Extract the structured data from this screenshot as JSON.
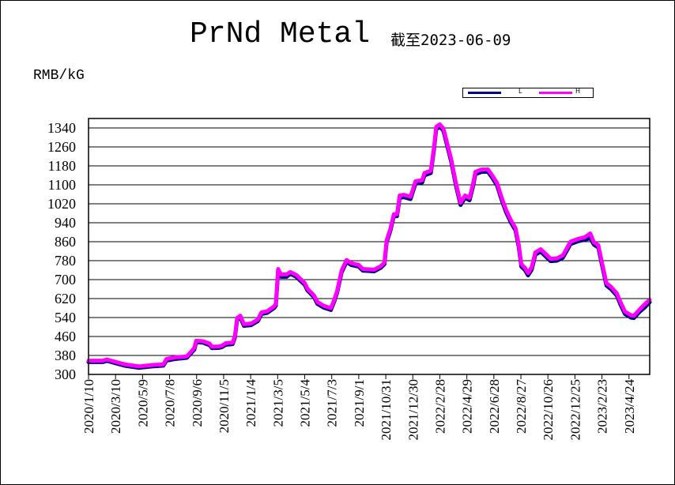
{
  "chart_data": {
    "type": "line",
    "title": "PrNd Metal",
    "subtitle": "截至2023-06-09",
    "ylabel": "RMB/kG",
    "xlabel": "",
    "ylim": [
      300,
      1380
    ],
    "yticks": [
      300,
      380,
      460,
      540,
      620,
      700,
      780,
      860,
      940,
      1020,
      1100,
      1180,
      1260,
      1340
    ],
    "xlim": [
      "2020-01-10",
      "2023-06-09"
    ],
    "xtick_labels": [
      "2020/1/10",
      "2020/3/10",
      "2020/5/9",
      "2020/7/8",
      "2020/9/6",
      "2020/11/5",
      "2021/1/4",
      "2021/3/5",
      "2021/5/4",
      "2021/7/3",
      "2021/9/1",
      "2021/10/31",
      "2021/12/30",
      "2022/2/28",
      "2022/4/29",
      "2022/6/28",
      "2022/8/27",
      "2022/10/26",
      "2022/12/25",
      "2023/2/23",
      "2023/4/24"
    ],
    "grid": "horizontal",
    "legend_position": "top-right",
    "series": [
      {
        "name": "L",
        "color": "#000080",
        "points": [
          [
            "2020-01-10",
            352
          ],
          [
            "2020-02-10",
            352
          ],
          [
            "2020-02-20",
            357
          ],
          [
            "2020-03-10",
            347
          ],
          [
            "2020-04-01",
            336
          ],
          [
            "2020-05-01",
            328
          ],
          [
            "2020-06-01",
            334
          ],
          [
            "2020-06-24",
            337
          ],
          [
            "2020-07-01",
            358
          ],
          [
            "2020-07-20",
            365
          ],
          [
            "2020-08-15",
            370
          ],
          [
            "2020-08-25",
            390
          ],
          [
            "2020-09-01",
            405
          ],
          [
            "2020-09-05",
            436
          ],
          [
            "2020-09-20",
            434
          ],
          [
            "2020-10-05",
            423
          ],
          [
            "2020-10-10",
            411
          ],
          [
            "2020-10-25",
            412
          ],
          [
            "2020-11-01",
            415
          ],
          [
            "2020-11-10",
            425
          ],
          [
            "2020-11-25",
            428
          ],
          [
            "2020-11-30",
            455
          ],
          [
            "2020-12-05",
            530
          ],
          [
            "2020-12-12",
            540
          ],
          [
            "2020-12-20",
            505
          ],
          [
            "2021-01-05",
            508
          ],
          [
            "2021-01-20",
            525
          ],
          [
            "2021-01-28",
            555
          ],
          [
            "2021-02-10",
            560
          ],
          [
            "2021-02-25",
            580
          ],
          [
            "2021-03-01",
            590
          ],
          [
            "2021-03-06",
            735
          ],
          [
            "2021-03-12",
            712
          ],
          [
            "2021-03-25",
            712
          ],
          [
            "2021-04-02",
            725
          ],
          [
            "2021-04-15",
            712
          ],
          [
            "2021-05-04",
            678
          ],
          [
            "2021-05-10",
            655
          ],
          [
            "2021-05-25",
            625
          ],
          [
            "2021-06-01",
            598
          ],
          [
            "2021-06-15",
            582
          ],
          [
            "2021-07-01",
            572
          ],
          [
            "2021-07-08",
            605
          ],
          [
            "2021-07-15",
            645
          ],
          [
            "2021-07-25",
            730
          ],
          [
            "2021-08-05",
            775
          ],
          [
            "2021-08-15",
            762
          ],
          [
            "2021-09-01",
            755
          ],
          [
            "2021-09-10",
            738
          ],
          [
            "2021-10-05",
            735
          ],
          [
            "2021-10-20",
            750
          ],
          [
            "2021-10-28",
            765
          ],
          [
            "2021-11-02",
            858
          ],
          [
            "2021-11-10",
            905
          ],
          [
            "2021-11-18",
            968
          ],
          [
            "2021-11-25",
            968
          ],
          [
            "2021-12-01",
            1045
          ],
          [
            "2021-12-10",
            1048
          ],
          [
            "2021-12-25",
            1040
          ],
          [
            "2022-01-05",
            1105
          ],
          [
            "2022-01-20",
            1110
          ],
          [
            "2022-01-25",
            1140
          ],
          [
            "2022-02-08",
            1150
          ],
          [
            "2022-02-15",
            1248
          ],
          [
            "2022-02-20",
            1335
          ],
          [
            "2022-02-28",
            1345
          ],
          [
            "2022-03-08",
            1328
          ],
          [
            "2022-03-15",
            1275
          ],
          [
            "2022-03-25",
            1200
          ],
          [
            "2022-04-05",
            1095
          ],
          [
            "2022-04-15",
            1015
          ],
          [
            "2022-04-25",
            1045
          ],
          [
            "2022-05-05",
            1035
          ],
          [
            "2022-05-12",
            1088
          ],
          [
            "2022-05-18",
            1145
          ],
          [
            "2022-06-01",
            1155
          ],
          [
            "2022-06-15",
            1155
          ],
          [
            "2022-06-25",
            1128
          ],
          [
            "2022-07-05",
            1098
          ],
          [
            "2022-07-15",
            1038
          ],
          [
            "2022-07-25",
            985
          ],
          [
            "2022-08-05",
            940
          ],
          [
            "2022-08-15",
            908
          ],
          [
            "2022-08-22",
            840
          ],
          [
            "2022-08-28",
            755
          ],
          [
            "2022-09-05",
            740
          ],
          [
            "2022-09-12",
            718
          ],
          [
            "2022-09-20",
            742
          ],
          [
            "2022-09-28",
            805
          ],
          [
            "2022-10-10",
            818
          ],
          [
            "2022-10-20",
            800
          ],
          [
            "2022-11-01",
            778
          ],
          [
            "2022-11-15",
            780
          ],
          [
            "2022-11-28",
            792
          ],
          [
            "2022-12-05",
            815
          ],
          [
            "2022-12-15",
            850
          ],
          [
            "2023-01-01",
            862
          ],
          [
            "2023-01-15",
            868
          ],
          [
            "2023-01-28",
            875
          ],
          [
            "2023-02-05",
            848
          ],
          [
            "2023-02-15",
            835
          ],
          [
            "2023-02-25",
            745
          ],
          [
            "2023-03-05",
            675
          ],
          [
            "2023-03-15",
            660
          ],
          [
            "2023-03-28",
            632
          ],
          [
            "2023-04-05",
            595
          ],
          [
            "2023-04-15",
            555
          ],
          [
            "2023-04-28",
            540
          ],
          [
            "2023-05-05",
            538
          ],
          [
            "2023-05-18",
            565
          ],
          [
            "2023-05-30",
            585
          ],
          [
            "2023-06-09",
            605
          ]
        ]
      },
      {
        "name": "H",
        "color": "#ff00ff",
        "points": [
          [
            "2020-01-10",
            358
          ],
          [
            "2020-02-10",
            358
          ],
          [
            "2020-02-20",
            363
          ],
          [
            "2020-03-10",
            353
          ],
          [
            "2020-04-01",
            342
          ],
          [
            "2020-05-01",
            334
          ],
          [
            "2020-06-01",
            340
          ],
          [
            "2020-06-24",
            342
          ],
          [
            "2020-07-01",
            365
          ],
          [
            "2020-07-20",
            372
          ],
          [
            "2020-08-15",
            376
          ],
          [
            "2020-08-25",
            396
          ],
          [
            "2020-09-01",
            412
          ],
          [
            "2020-09-05",
            442
          ],
          [
            "2020-09-20",
            440
          ],
          [
            "2020-10-05",
            430
          ],
          [
            "2020-10-10",
            417
          ],
          [
            "2020-10-25",
            418
          ],
          [
            "2020-11-01",
            421
          ],
          [
            "2020-11-10",
            432
          ],
          [
            "2020-11-25",
            434
          ],
          [
            "2020-11-30",
            462
          ],
          [
            "2020-12-05",
            538
          ],
          [
            "2020-12-12",
            548
          ],
          [
            "2020-12-20",
            512
          ],
          [
            "2021-01-05",
            515
          ],
          [
            "2021-01-20",
            532
          ],
          [
            "2021-01-28",
            562
          ],
          [
            "2021-02-10",
            567
          ],
          [
            "2021-02-25",
            587
          ],
          [
            "2021-03-01",
            598
          ],
          [
            "2021-03-06",
            745
          ],
          [
            "2021-03-12",
            722
          ],
          [
            "2021-03-25",
            722
          ],
          [
            "2021-04-02",
            732
          ],
          [
            "2021-04-15",
            720
          ],
          [
            "2021-05-04",
            686
          ],
          [
            "2021-05-10",
            662
          ],
          [
            "2021-05-25",
            632
          ],
          [
            "2021-06-01",
            606
          ],
          [
            "2021-06-15",
            590
          ],
          [
            "2021-07-01",
            580
          ],
          [
            "2021-07-08",
            612
          ],
          [
            "2021-07-15",
            652
          ],
          [
            "2021-07-25",
            738
          ],
          [
            "2021-08-05",
            783
          ],
          [
            "2021-08-15",
            770
          ],
          [
            "2021-09-01",
            762
          ],
          [
            "2021-09-10",
            745
          ],
          [
            "2021-10-05",
            742
          ],
          [
            "2021-10-20",
            757
          ],
          [
            "2021-10-28",
            772
          ],
          [
            "2021-11-02",
            866
          ],
          [
            "2021-11-10",
            913
          ],
          [
            "2021-11-18",
            976
          ],
          [
            "2021-11-25",
            976
          ],
          [
            "2021-12-01",
            1055
          ],
          [
            "2021-12-10",
            1058
          ],
          [
            "2021-12-25",
            1050
          ],
          [
            "2022-01-05",
            1115
          ],
          [
            "2022-01-20",
            1120
          ],
          [
            "2022-01-25",
            1150
          ],
          [
            "2022-02-08",
            1160
          ],
          [
            "2022-02-15",
            1258
          ],
          [
            "2022-02-20",
            1345
          ],
          [
            "2022-02-28",
            1355
          ],
          [
            "2022-03-08",
            1338
          ],
          [
            "2022-03-15",
            1285
          ],
          [
            "2022-03-25",
            1210
          ],
          [
            "2022-04-05",
            1105
          ],
          [
            "2022-04-15",
            1025
          ],
          [
            "2022-04-25",
            1055
          ],
          [
            "2022-05-05",
            1045
          ],
          [
            "2022-05-12",
            1098
          ],
          [
            "2022-05-18",
            1155
          ],
          [
            "2022-06-01",
            1165
          ],
          [
            "2022-06-15",
            1165
          ],
          [
            "2022-06-25",
            1138
          ],
          [
            "2022-07-05",
            1108
          ],
          [
            "2022-07-15",
            1048
          ],
          [
            "2022-07-25",
            995
          ],
          [
            "2022-08-05",
            950
          ],
          [
            "2022-08-15",
            918
          ],
          [
            "2022-08-22",
            850
          ],
          [
            "2022-08-28",
            765
          ],
          [
            "2022-09-05",
            750
          ],
          [
            "2022-09-12",
            728
          ],
          [
            "2022-09-20",
            752
          ],
          [
            "2022-09-28",
            815
          ],
          [
            "2022-10-10",
            828
          ],
          [
            "2022-10-20",
            810
          ],
          [
            "2022-11-01",
            788
          ],
          [
            "2022-11-15",
            790
          ],
          [
            "2022-11-28",
            802
          ],
          [
            "2022-12-05",
            825
          ],
          [
            "2022-12-15",
            860
          ],
          [
            "2023-01-01",
            872
          ],
          [
            "2023-01-15",
            878
          ],
          [
            "2023-01-28",
            895
          ],
          [
            "2023-02-05",
            858
          ],
          [
            "2023-02-15",
            845
          ],
          [
            "2023-02-25",
            755
          ],
          [
            "2023-03-05",
            685
          ],
          [
            "2023-03-15",
            670
          ],
          [
            "2023-03-28",
            642
          ],
          [
            "2023-04-05",
            605
          ],
          [
            "2023-04-15",
            565
          ],
          [
            "2023-04-28",
            550
          ],
          [
            "2023-05-05",
            548
          ],
          [
            "2023-05-18",
            575
          ],
          [
            "2023-05-30",
            598
          ],
          [
            "2023-06-09",
            615
          ]
        ]
      }
    ]
  }
}
